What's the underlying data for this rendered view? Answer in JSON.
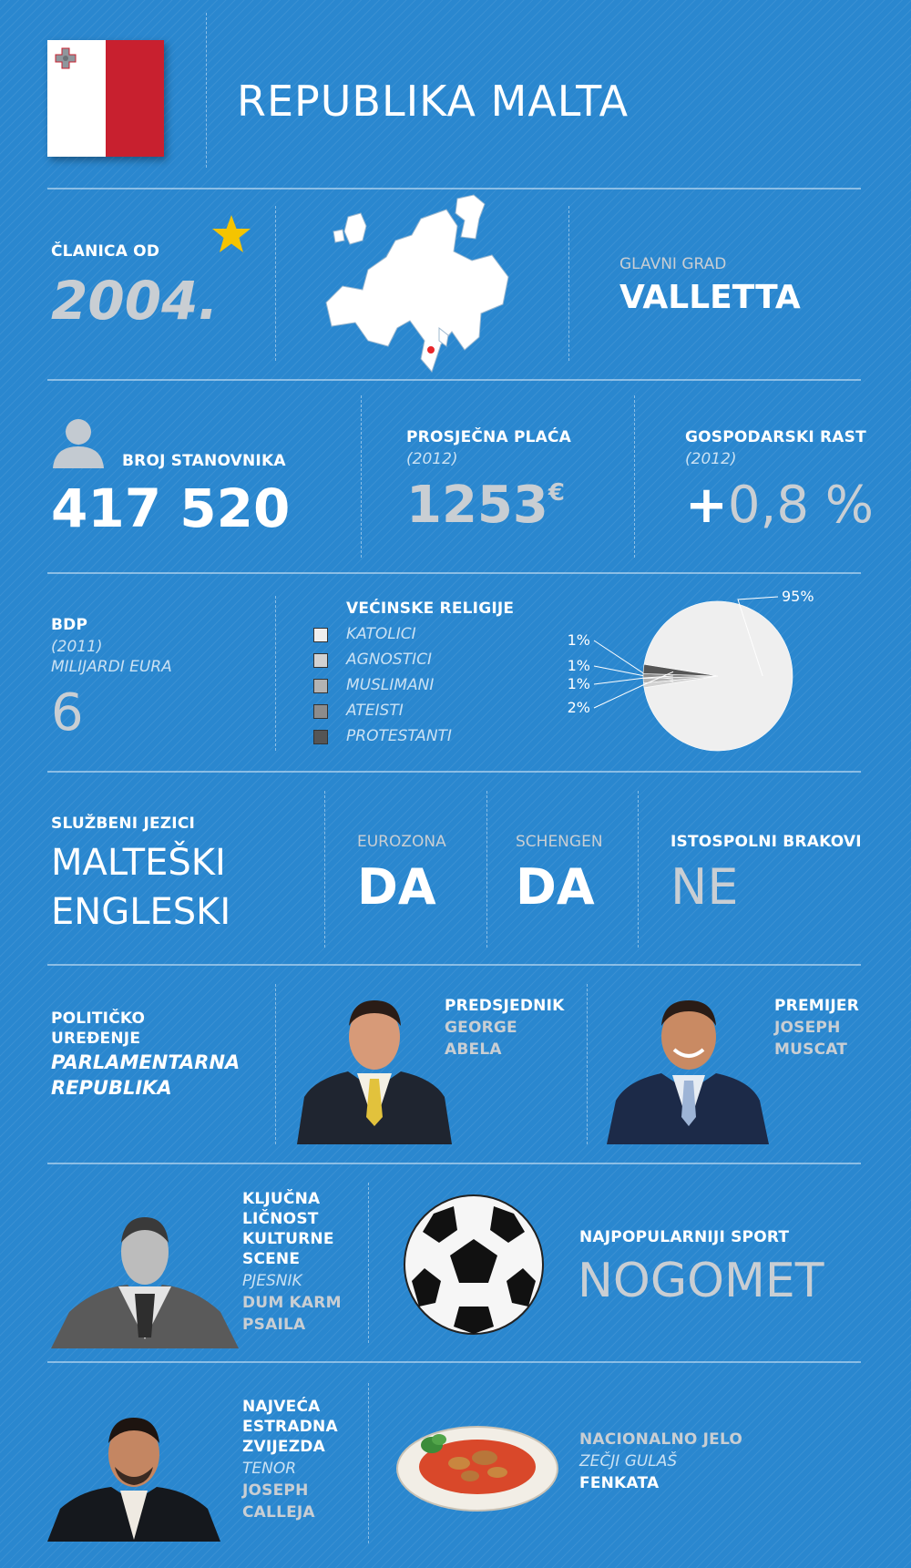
{
  "header": {
    "title": "REPUBLIKA MALTA"
  },
  "membership": {
    "label": "ČLANICA OD",
    "year": "2004."
  },
  "capital": {
    "label": "GLAVNI GRAD",
    "value": "VALLETTA"
  },
  "population": {
    "label": "BROJ STANOVNIKA",
    "value": "417 520"
  },
  "salary": {
    "label": "PROSJEČNA PLAĆA",
    "year": "(2012)",
    "value": "1253",
    "currency": "€"
  },
  "growth": {
    "label": "GOSPODARSKI RAST",
    "year": "(2012)",
    "sign": "+",
    "value": "0,8 %"
  },
  "gdp": {
    "label": "BDP",
    "year": "(2011)",
    "unit": "MILIJARDI EURA",
    "value": "6"
  },
  "religions": {
    "title": "VEĆINSKE RELIGIJE",
    "items": [
      {
        "name": "KATOLICI",
        "color": "#efefef"
      },
      {
        "name": "AGNOSTICI",
        "color": "#d2d2d2"
      },
      {
        "name": "MUSLIMANI",
        "color": "#b3b3b3"
      },
      {
        "name": "ATEISTI",
        "color": "#8c8c8c"
      },
      {
        "name": "PROTESTANTI",
        "color": "#555555"
      }
    ]
  },
  "chart_data": {
    "type": "pie",
    "categories": [
      "KATOLICI",
      "AGNOSTICI",
      "MUSLIMANI",
      "ATEISTI",
      "PROTESTANTI"
    ],
    "values": [
      95,
      1,
      1,
      1,
      2
    ],
    "labels": [
      "95%",
      "1%",
      "1%",
      "1%",
      "2%"
    ],
    "colors": [
      "#efefef",
      "#d2d2d2",
      "#b3b3b3",
      "#8c8c8c",
      "#555555"
    ]
  },
  "languages": {
    "label": "SLUŽBENI JEZICI",
    "line1": "MALTEŠKI",
    "line2": "ENGLESKI"
  },
  "eurozone": {
    "label": "EUROZONA",
    "value": "DA"
  },
  "schengen": {
    "label": "SCHENGEN",
    "value": "DA"
  },
  "marriage": {
    "label": "ISTOSPOLNI BRAKOVI",
    "value": "NE"
  },
  "politics": {
    "line1": "POLITIČKO",
    "line2": "UREĐENJE",
    "value1": "PARLAMENTARNA",
    "value2": "REPUBLIKA"
  },
  "president": {
    "role": "PREDSJEDNIK",
    "first": "GEORGE",
    "last": "ABELA"
  },
  "premier": {
    "role": "PREMIJER",
    "first": "JOSEPH",
    "last": "MUSCAT"
  },
  "culture": {
    "l1": "KLJUČNA",
    "l2": "LIČNOST",
    "l3": "KULTURNE",
    "l4": "SCENE",
    "role": "PJESNIK",
    "n1": "DUM KARM",
    "n2": "PSAILA"
  },
  "sport": {
    "label": "NAJPOPULARNIJI SPORT",
    "value": "NOGOMET"
  },
  "star": {
    "l1": "NAJVEĆA",
    "l2": "ESTRADNA",
    "l3": "ZVIJEZDA",
    "role": "TENOR",
    "n1": "JOSEPH",
    "n2": "CALLEJA"
  },
  "dish": {
    "label": "NACIONALNO JELO",
    "desc": "ZEČJI GULAŠ",
    "value": "FENKATA"
  },
  "colors": {
    "background": "#2a87cf",
    "flag_red": "#c8202f",
    "star": "#f5c400"
  }
}
